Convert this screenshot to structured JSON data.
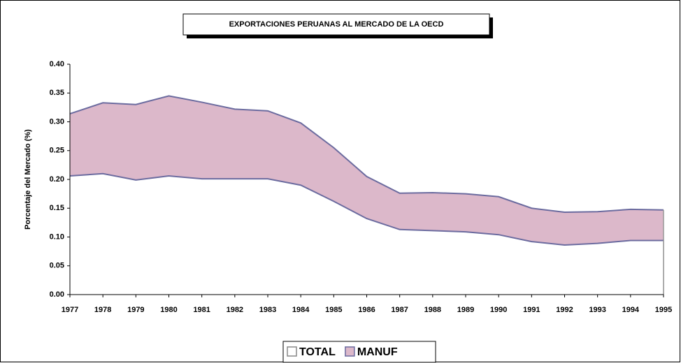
{
  "chart_data": {
    "type": "area",
    "title": "EXPORTACIONES PERUANAS AL MERCADO DE LA OECD",
    "y_label": "Porcentaje del Mercado (%)",
    "categories": [
      "1977",
      "1978",
      "1979",
      "1980",
      "1981",
      "1982",
      "1983",
      "1984",
      "1985",
      "1986",
      "1987",
      "1988",
      "1989",
      "1990",
      "1991",
      "1992",
      "1993",
      "1994",
      "1995"
    ],
    "series": [
      {
        "name": "TOTAL",
        "color": "#ffffff",
        "line_color": "#6b6b9f",
        "values": [
          0.206,
          0.21,
          0.199,
          0.206,
          0.201,
          0.201,
          0.201,
          0.19,
          0.162,
          0.132,
          0.113,
          0.111,
          0.109,
          0.104,
          0.092,
          0.086,
          0.089,
          0.094,
          0.094
        ]
      },
      {
        "name": "MANUF",
        "color": "#dcb8ca",
        "line_color": "#6b6b9f",
        "values": [
          0.314,
          0.333,
          0.33,
          0.345,
          0.334,
          0.322,
          0.319,
          0.298,
          0.255,
          0.205,
          0.176,
          0.177,
          0.175,
          0.17,
          0.15,
          0.143,
          0.144,
          0.148,
          0.147
        ]
      }
    ],
    "ylim": [
      0,
      0.4
    ],
    "yticks": [
      {
        "value": 0,
        "label": "0.00"
      },
      {
        "value": 0.05,
        "label": "0.05"
      },
      {
        "value": 0.1,
        "label": "0.10"
      },
      {
        "value": 0.15,
        "label": "0.15"
      },
      {
        "value": 0.2,
        "label": "0.20"
      },
      {
        "value": 0.25,
        "label": "0.25"
      },
      {
        "value": 0.3,
        "label": "0.30"
      },
      {
        "value": 0.35,
        "label": "0.35"
      },
      {
        "value": 0.4,
        "label": "0.40"
      }
    ],
    "legend": "bottom"
  }
}
